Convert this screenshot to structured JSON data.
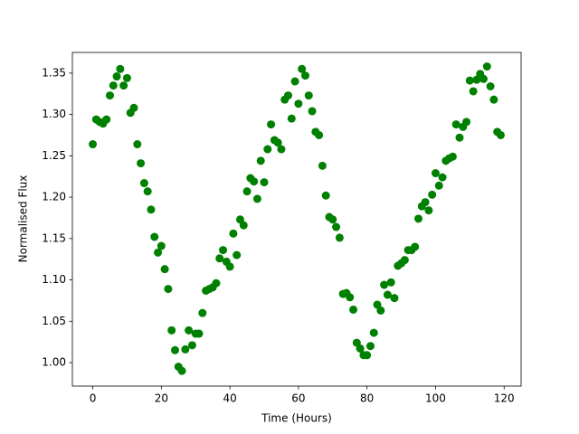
{
  "chart_data": {
    "type": "scatter",
    "xlabel": "Time (Hours)",
    "ylabel": "Normalised Flux",
    "color": "#008000",
    "grid": false,
    "x": [
      0,
      1,
      2,
      3,
      4,
      5,
      6,
      7,
      8,
      9,
      10,
      11,
      12,
      13,
      14,
      15,
      16,
      17,
      18,
      19,
      20,
      21,
      22,
      23,
      24,
      25,
      26,
      27,
      28,
      29,
      30,
      31,
      32,
      33,
      34,
      35,
      36,
      37,
      38,
      39,
      40,
      41,
      42,
      43,
      44,
      45,
      46,
      47,
      48,
      49,
      50,
      51,
      52,
      53,
      54,
      55,
      56,
      57,
      58,
      59,
      60,
      61,
      62,
      63,
      64,
      65,
      66,
      67,
      68,
      69,
      70,
      71,
      72,
      73,
      74,
      75,
      76,
      77,
      78,
      79,
      80,
      81,
      82,
      83,
      84,
      85,
      86,
      87,
      88,
      89,
      90,
      91,
      92,
      93,
      94,
      95,
      96,
      97,
      98,
      99,
      100,
      101,
      102,
      103,
      104,
      105,
      106,
      107,
      108,
      109,
      110,
      111,
      112,
      113,
      114,
      115,
      116,
      117,
      118,
      119
    ],
    "values": [
      1.264,
      1.294,
      1.291,
      1.289,
      1.294,
      1.323,
      1.335,
      1.346,
      1.355,
      1.335,
      1.344,
      1.302,
      1.308,
      1.264,
      1.241,
      1.217,
      1.207,
      1.185,
      1.152,
      1.133,
      1.141,
      1.113,
      1.089,
      1.039,
      1.015,
      0.995,
      0.99,
      1.016,
      1.039,
      1.021,
      1.035,
      1.035,
      1.06,
      1.087,
      1.089,
      1.091,
      1.096,
      1.126,
      1.136,
      1.122,
      1.116,
      1.156,
      1.13,
      1.173,
      1.166,
      1.207,
      1.223,
      1.219,
      1.198,
      1.244,
      1.218,
      1.258,
      1.288,
      1.269,
      1.266,
      1.258,
      1.318,
      1.323,
      1.295,
      1.34,
      1.313,
      1.355,
      1.347,
      1.323,
      1.304,
      1.279,
      1.275,
      1.238,
      1.202,
      1.176,
      1.173,
      1.164,
      1.151,
      1.083,
      1.084,
      1.079,
      1.064,
      1.024,
      1.017,
      1.009,
      1.009,
      1.02,
      1.036,
      1.07,
      1.063,
      1.094,
      1.082,
      1.097,
      1.078,
      1.117,
      1.12,
      1.124,
      1.136,
      1.136,
      1.14,
      1.174,
      1.189,
      1.194,
      1.184,
      1.203,
      1.229,
      1.214,
      1.224,
      1.244,
      1.247,
      1.249,
      1.288,
      1.272,
      1.285,
      1.291,
      1.341,
      1.328,
      1.342,
      1.349,
      1.343,
      1.358,
      1.334,
      1.318,
      1.279,
      1.275
    ],
    "xlim": [
      -5.95,
      124.95
    ],
    "xticks": [
      0,
      20,
      40,
      60,
      80,
      100,
      120
    ],
    "ylim": [
      0.9716,
      1.375
    ],
    "yticks": [
      {
        "value": 1,
        "label": "1.00"
      },
      1.05,
      {
        "value": 1.1,
        "label": "1.10"
      },
      1.15,
      {
        "value": 1.2,
        "label": "1.20"
      },
      1.25,
      {
        "value": 1.3,
        "label": "1.30"
      },
      1.35
    ]
  }
}
